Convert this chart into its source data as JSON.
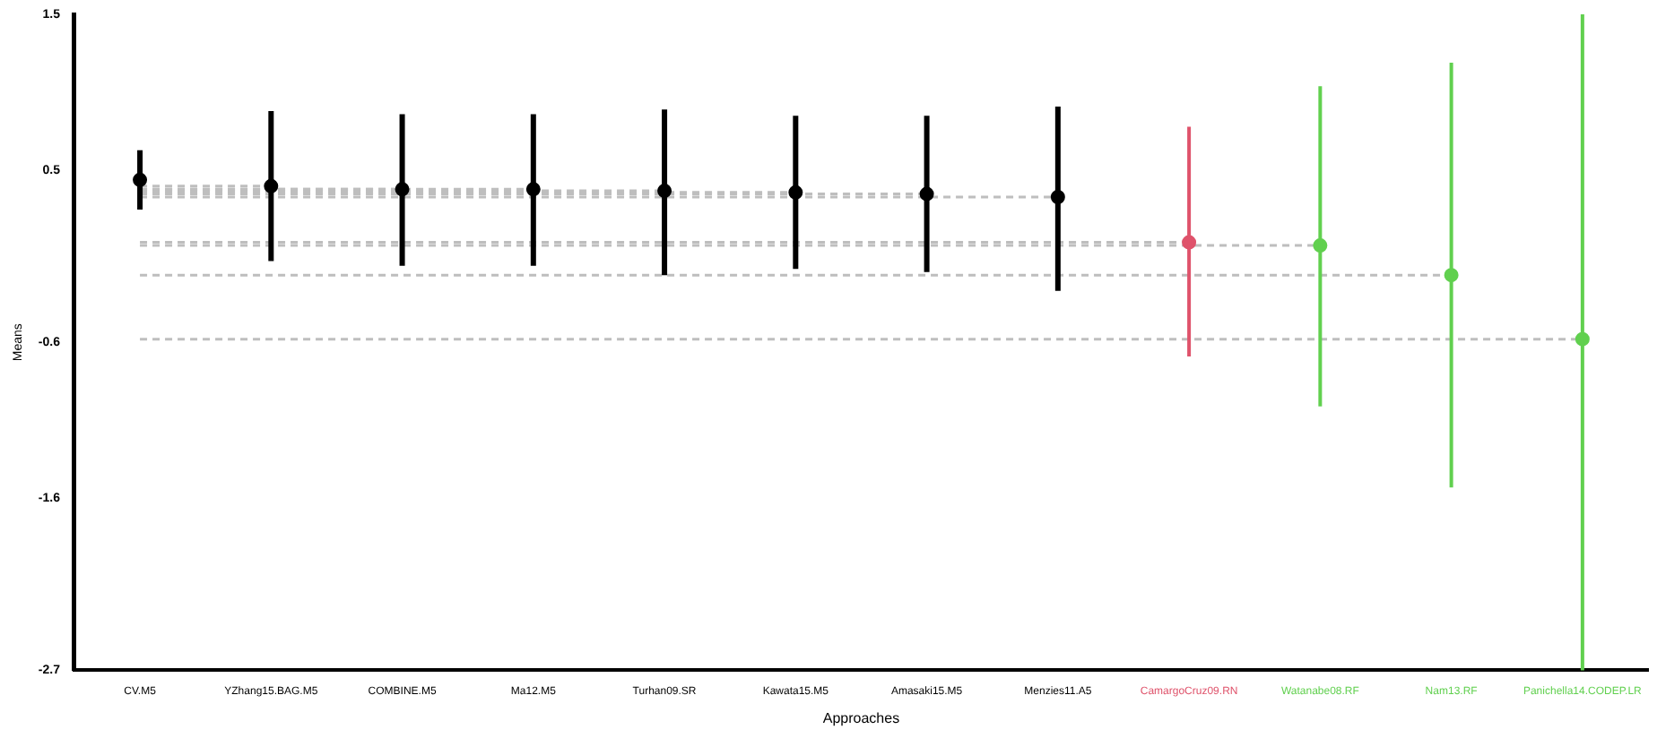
{
  "chart_data": {
    "type": "scatter",
    "xlabel": "Approaches",
    "ylabel": "Means",
    "categories": [
      "CV.M5",
      "YZhang15.BAG.M5",
      "COMBINE.M5",
      "Ma12.M5",
      "Turhan09.SR",
      "Kawata15.M5",
      "Amasaki15.M5",
      "Menzies11.A5",
      "CamargoCruz09.RN",
      "Watanabe08.RF",
      "Nam13.RF",
      "Panichella14.CODEP.LR"
    ],
    "ylim": [
      -2.7,
      1.5
    ],
    "yticks": [
      -2.7,
      -1.6,
      -0.6,
      0.5,
      1.5
    ],
    "marker": "circle",
    "series": [
      {
        "type": "line",
        "color": "#bebebe",
        "line_style": "dashed",
        "marker": "none",
        "values": [
          0.4,
          0.4,
          null,
          null,
          null,
          null,
          null,
          null,
          null,
          null,
          null,
          null
        ]
      },
      {
        "type": "line",
        "color": "#bebebe",
        "line_style": "dashed",
        "marker": "none",
        "values": [
          0.38,
          0.38,
          0.38,
          null,
          null,
          null,
          null,
          null,
          null,
          null,
          null,
          null
        ]
      },
      {
        "type": "line",
        "color": "#bebebe",
        "line_style": "dashed",
        "marker": "none",
        "values": [
          0.38,
          0.38,
          0.38,
          0.38,
          null,
          null,
          null,
          null,
          null,
          null,
          null,
          null
        ]
      },
      {
        "type": "line",
        "color": "#bebebe",
        "line_style": "dashed",
        "marker": "none",
        "values": [
          0.37,
          0.37,
          0.37,
          0.37,
          0.37,
          null,
          null,
          null,
          null,
          null,
          null,
          null
        ]
      },
      {
        "type": "line",
        "color": "#bebebe",
        "line_style": "dashed",
        "marker": "none",
        "values": [
          0.36,
          0.36,
          0.36,
          0.36,
          0.36,
          0.36,
          null,
          null,
          null,
          null,
          null,
          null
        ]
      },
      {
        "type": "line",
        "color": "#bebebe",
        "line_style": "dashed",
        "marker": "none",
        "values": [
          0.35,
          0.35,
          0.35,
          0.35,
          0.35,
          0.35,
          0.35,
          null,
          null,
          null,
          null,
          null
        ]
      },
      {
        "type": "line",
        "color": "#bebebe",
        "line_style": "dashed",
        "marker": "none",
        "values": [
          0.33,
          0.33,
          0.33,
          0.33,
          0.33,
          0.33,
          0.33,
          0.33,
          null,
          null,
          null,
          null
        ]
      },
      {
        "type": "line",
        "color": "#bebebe",
        "line_style": "dashed",
        "marker": "none",
        "values": [
          0.04,
          0.04,
          0.04,
          0.04,
          0.04,
          0.04,
          0.04,
          0.04,
          0.04,
          null,
          null,
          null
        ]
      },
      {
        "type": "line",
        "color": "#bebebe",
        "line_style": "dashed",
        "marker": "none",
        "values": [
          0.02,
          0.02,
          0.02,
          0.02,
          0.02,
          0.02,
          0.02,
          0.02,
          0.02,
          0.02,
          null,
          null
        ]
      },
      {
        "type": "line",
        "color": "#bebebe",
        "line_style": "dashed",
        "marker": "none",
        "values": [
          -0.17,
          -0.17,
          -0.17,
          -0.17,
          -0.17,
          -0.17,
          -0.17,
          -0.17,
          -0.17,
          -0.17,
          -0.17,
          null
        ]
      },
      {
        "type": "line",
        "color": "#bebebe",
        "line_style": "dashed",
        "marker": "none",
        "values": [
          -0.58,
          -0.58,
          -0.58,
          -0.58,
          -0.58,
          -0.58,
          -0.58,
          -0.58,
          -0.58,
          -0.58,
          -0.58,
          -0.58
        ]
      },
      {
        "colors": [
          "#000000",
          "#000000",
          "#000000",
          "#000000",
          "#000000",
          "#000000",
          "#000000",
          "#000000",
          "#df536b",
          "#61d04f",
          "#61d04f",
          "#61d04f"
        ],
        "values": [
          0.44,
          0.4,
          0.38,
          0.38,
          0.37,
          0.36,
          0.35,
          0.33,
          0.04,
          0.02,
          -0.17,
          -0.58
        ],
        "errors": [
          [
            0.25,
            0.63
          ],
          [
            -0.08,
            0.88
          ],
          [
            -0.11,
            0.86
          ],
          [
            -0.11,
            0.86
          ],
          [
            -0.17,
            0.89
          ],
          [
            -0.13,
            0.85
          ],
          [
            -0.15,
            0.85
          ],
          [
            -0.27,
            0.91
          ],
          [
            -0.69,
            0.78
          ],
          [
            -1.01,
            1.04
          ],
          [
            -1.53,
            1.19
          ],
          [
            -2.7,
            1.5
          ]
        ]
      }
    ]
  }
}
